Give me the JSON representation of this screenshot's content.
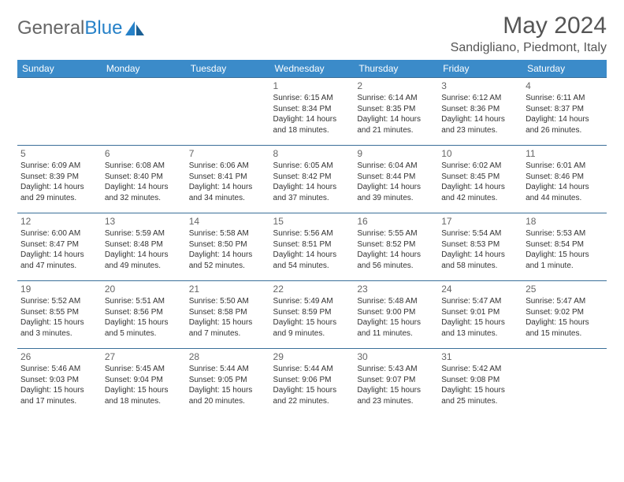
{
  "brand": {
    "part1": "General",
    "part2": "Blue"
  },
  "title": "May 2024",
  "location": "Sandigliano, Piedmont, Italy",
  "headers": [
    "Sunday",
    "Monday",
    "Tuesday",
    "Wednesday",
    "Thursday",
    "Friday",
    "Saturday"
  ],
  "header_bg": "#3b8bc9",
  "header_fg": "#ffffff",
  "cell_border": "#3b6f99",
  "text_color": "#333333",
  "weeks": [
    [
      null,
      null,
      null,
      {
        "n": "1",
        "sr": "6:15 AM",
        "ss": "8:34 PM",
        "dl": "14 hours and 18 minutes."
      },
      {
        "n": "2",
        "sr": "6:14 AM",
        "ss": "8:35 PM",
        "dl": "14 hours and 21 minutes."
      },
      {
        "n": "3",
        "sr": "6:12 AM",
        "ss": "8:36 PM",
        "dl": "14 hours and 23 minutes."
      },
      {
        "n": "4",
        "sr": "6:11 AM",
        "ss": "8:37 PM",
        "dl": "14 hours and 26 minutes."
      }
    ],
    [
      {
        "n": "5",
        "sr": "6:09 AM",
        "ss": "8:39 PM",
        "dl": "14 hours and 29 minutes."
      },
      {
        "n": "6",
        "sr": "6:08 AM",
        "ss": "8:40 PM",
        "dl": "14 hours and 32 minutes."
      },
      {
        "n": "7",
        "sr": "6:06 AM",
        "ss": "8:41 PM",
        "dl": "14 hours and 34 minutes."
      },
      {
        "n": "8",
        "sr": "6:05 AM",
        "ss": "8:42 PM",
        "dl": "14 hours and 37 minutes."
      },
      {
        "n": "9",
        "sr": "6:04 AM",
        "ss": "8:44 PM",
        "dl": "14 hours and 39 minutes."
      },
      {
        "n": "10",
        "sr": "6:02 AM",
        "ss": "8:45 PM",
        "dl": "14 hours and 42 minutes."
      },
      {
        "n": "11",
        "sr": "6:01 AM",
        "ss": "8:46 PM",
        "dl": "14 hours and 44 minutes."
      }
    ],
    [
      {
        "n": "12",
        "sr": "6:00 AM",
        "ss": "8:47 PM",
        "dl": "14 hours and 47 minutes."
      },
      {
        "n": "13",
        "sr": "5:59 AM",
        "ss": "8:48 PM",
        "dl": "14 hours and 49 minutes."
      },
      {
        "n": "14",
        "sr": "5:58 AM",
        "ss": "8:50 PM",
        "dl": "14 hours and 52 minutes."
      },
      {
        "n": "15",
        "sr": "5:56 AM",
        "ss": "8:51 PM",
        "dl": "14 hours and 54 minutes."
      },
      {
        "n": "16",
        "sr": "5:55 AM",
        "ss": "8:52 PM",
        "dl": "14 hours and 56 minutes."
      },
      {
        "n": "17",
        "sr": "5:54 AM",
        "ss": "8:53 PM",
        "dl": "14 hours and 58 minutes."
      },
      {
        "n": "18",
        "sr": "5:53 AM",
        "ss": "8:54 PM",
        "dl": "15 hours and 1 minute."
      }
    ],
    [
      {
        "n": "19",
        "sr": "5:52 AM",
        "ss": "8:55 PM",
        "dl": "15 hours and 3 minutes."
      },
      {
        "n": "20",
        "sr": "5:51 AM",
        "ss": "8:56 PM",
        "dl": "15 hours and 5 minutes."
      },
      {
        "n": "21",
        "sr": "5:50 AM",
        "ss": "8:58 PM",
        "dl": "15 hours and 7 minutes."
      },
      {
        "n": "22",
        "sr": "5:49 AM",
        "ss": "8:59 PM",
        "dl": "15 hours and 9 minutes."
      },
      {
        "n": "23",
        "sr": "5:48 AM",
        "ss": "9:00 PM",
        "dl": "15 hours and 11 minutes."
      },
      {
        "n": "24",
        "sr": "5:47 AM",
        "ss": "9:01 PM",
        "dl": "15 hours and 13 minutes."
      },
      {
        "n": "25",
        "sr": "5:47 AM",
        "ss": "9:02 PM",
        "dl": "15 hours and 15 minutes."
      }
    ],
    [
      {
        "n": "26",
        "sr": "5:46 AM",
        "ss": "9:03 PM",
        "dl": "15 hours and 17 minutes."
      },
      {
        "n": "27",
        "sr": "5:45 AM",
        "ss": "9:04 PM",
        "dl": "15 hours and 18 minutes."
      },
      {
        "n": "28",
        "sr": "5:44 AM",
        "ss": "9:05 PM",
        "dl": "15 hours and 20 minutes."
      },
      {
        "n": "29",
        "sr": "5:44 AM",
        "ss": "9:06 PM",
        "dl": "15 hours and 22 minutes."
      },
      {
        "n": "30",
        "sr": "5:43 AM",
        "ss": "9:07 PM",
        "dl": "15 hours and 23 minutes."
      },
      {
        "n": "31",
        "sr": "5:42 AM",
        "ss": "9:08 PM",
        "dl": "15 hours and 25 minutes."
      },
      null
    ]
  ],
  "labels": {
    "sunrise": "Sunrise:",
    "sunset": "Sunset:",
    "daylight": "Daylight:"
  }
}
